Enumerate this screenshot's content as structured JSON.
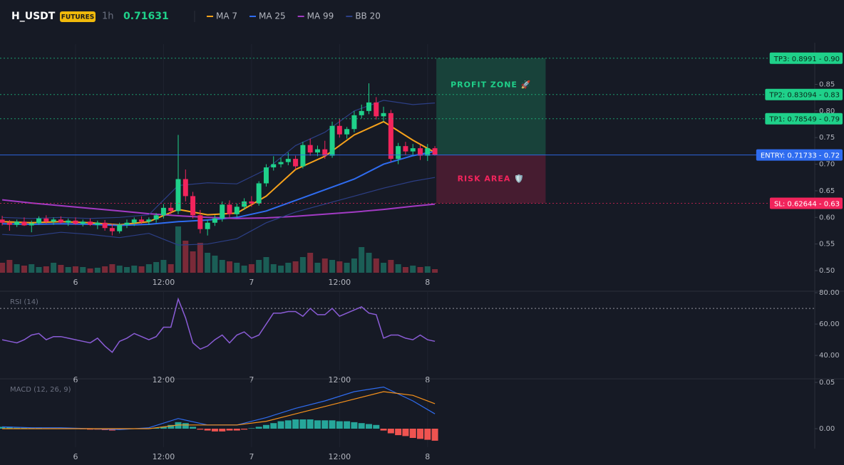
{
  "header": {
    "symbol": "H_USDT",
    "badge": "FUTURES",
    "interval": "1h",
    "price": 0.71631
  },
  "chart_data": [
    {
      "type": "candlestick",
      "x": [
        -10,
        -9,
        -8,
        -7,
        -6,
        -5,
        -4,
        -3,
        -2,
        -1,
        0,
        1,
        2,
        3,
        4,
        5,
        6,
        7,
        8,
        9,
        10,
        11,
        12,
        13,
        14,
        15,
        16,
        17,
        18,
        19,
        20,
        21,
        22,
        23,
        24,
        25,
        26,
        27,
        28,
        29,
        30,
        31,
        32,
        33,
        34,
        35,
        36,
        37,
        38,
        39,
        40,
        41,
        42,
        43,
        44,
        45,
        46,
        47,
        48,
        49
      ],
      "open": [
        0.596,
        0.59,
        0.586,
        0.592,
        0.585,
        0.589,
        0.598,
        0.592,
        0.596,
        0.59,
        0.594,
        0.588,
        0.592,
        0.586,
        0.59,
        0.58,
        0.574,
        0.586,
        0.59,
        0.596,
        0.592,
        0.596,
        0.604,
        0.618,
        0.612,
        0.672,
        0.64,
        0.604,
        0.578,
        0.59,
        0.598,
        0.624,
        0.606,
        0.62,
        0.63,
        0.626,
        0.664,
        0.694,
        0.7,
        0.704,
        0.71,
        0.696,
        0.736,
        0.722,
        0.728,
        0.716,
        0.772,
        0.756,
        0.766,
        0.792,
        0.8,
        0.816,
        0.79,
        0.796,
        0.71,
        0.734,
        0.724,
        0.73,
        0.716,
        0.73
      ],
      "high": [
        0.603,
        0.595,
        0.596,
        0.6,
        0.594,
        0.602,
        0.604,
        0.6,
        0.602,
        0.598,
        0.6,
        0.596,
        0.598,
        0.594,
        0.595,
        0.588,
        0.59,
        0.596,
        0.6,
        0.602,
        0.6,
        0.608,
        0.625,
        0.628,
        0.755,
        0.69,
        0.648,
        0.614,
        0.596,
        0.604,
        0.63,
        0.632,
        0.626,
        0.636,
        0.64,
        0.668,
        0.7,
        0.715,
        0.712,
        0.722,
        0.716,
        0.742,
        0.748,
        0.735,
        0.744,
        0.78,
        0.785,
        0.77,
        0.8,
        0.812,
        0.852,
        0.826,
        0.808,
        0.802,
        0.74,
        0.742,
        0.738,
        0.736,
        0.738,
        0.734
      ],
      "low": [
        0.585,
        0.575,
        0.582,
        0.584,
        0.572,
        0.586,
        0.588,
        0.586,
        0.588,
        0.584,
        0.586,
        0.583,
        0.584,
        0.578,
        0.575,
        0.566,
        0.57,
        0.58,
        0.584,
        0.588,
        0.586,
        0.59,
        0.598,
        0.606,
        0.606,
        0.63,
        0.598,
        0.57,
        0.566,
        0.584,
        0.592,
        0.6,
        0.6,
        0.614,
        0.62,
        0.622,
        0.658,
        0.688,
        0.694,
        0.698,
        0.69,
        0.692,
        0.716,
        0.715,
        0.71,
        0.712,
        0.75,
        0.748,
        0.76,
        0.786,
        0.794,
        0.784,
        0.78,
        0.704,
        0.7,
        0.718,
        0.716,
        0.708,
        0.706,
        0.716
      ],
      "close": [
        0.59,
        0.586,
        0.592,
        0.585,
        0.589,
        0.598,
        0.592,
        0.596,
        0.59,
        0.594,
        0.588,
        0.592,
        0.586,
        0.59,
        0.58,
        0.574,
        0.586,
        0.59,
        0.596,
        0.592,
        0.596,
        0.604,
        0.618,
        0.612,
        0.672,
        0.64,
        0.604,
        0.578,
        0.59,
        0.598,
        0.624,
        0.606,
        0.62,
        0.63,
        0.626,
        0.664,
        0.694,
        0.7,
        0.704,
        0.71,
        0.696,
        0.736,
        0.722,
        0.728,
        0.716,
        0.772,
        0.756,
        0.766,
        0.792,
        0.8,
        0.816,
        0.79,
        0.796,
        0.71,
        0.734,
        0.724,
        0.73,
        0.716,
        0.73,
        0.717
      ],
      "up_color": "#1fd18a",
      "down_color": "#f2245c",
      "volume": {
        "values": [
          14,
          18,
          12,
          10,
          12,
          8,
          9,
          14,
          11,
          8,
          9,
          8,
          6,
          7,
          9,
          12,
          10,
          8,
          10,
          9,
          12,
          15,
          18,
          12,
          65,
          45,
          30,
          42,
          28,
          24,
          18,
          16,
          14,
          10,
          12,
          18,
          22,
          12,
          10,
          14,
          16,
          22,
          28,
          14,
          20,
          18,
          16,
          14,
          20,
          36,
          28,
          20,
          14,
          18,
          12,
          8,
          10,
          8,
          9,
          5
        ],
        "up_color": "#1b5e56",
        "down_color": "#7a2a38"
      },
      "overlays": [
        {
          "name": "MA 7",
          "color": "#f7a21b",
          "x": [
            -10,
            -6,
            -2,
            2,
            6,
            10,
            14,
            18,
            22,
            26,
            30,
            34,
            38,
            42,
            46,
            49
          ],
          "values": [
            0.592,
            0.59,
            0.592,
            0.59,
            0.586,
            0.592,
            0.615,
            0.605,
            0.608,
            0.64,
            0.69,
            0.715,
            0.755,
            0.78,
            0.745,
            0.722
          ]
        },
        {
          "name": "MA 25",
          "color": "#2f6cf0",
          "x": [
            -10,
            -6,
            -2,
            2,
            6,
            10,
            14,
            18,
            22,
            26,
            30,
            34,
            38,
            42,
            46,
            49
          ],
          "values": [
            0.588,
            0.587,
            0.588,
            0.587,
            0.585,
            0.587,
            0.592,
            0.595,
            0.6,
            0.612,
            0.632,
            0.652,
            0.672,
            0.7,
            0.716,
            0.724
          ]
        },
        {
          "name": "MA 99",
          "color": "#a23bc4",
          "x": [
            -10,
            -6,
            -2,
            2,
            6,
            10,
            14,
            18,
            22,
            26,
            30,
            34,
            38,
            42,
            46,
            49
          ],
          "values": [
            0.633,
            0.627,
            0.622,
            0.617,
            0.612,
            0.607,
            0.603,
            0.6,
            0.598,
            0.599,
            0.602,
            0.606,
            0.61,
            0.615,
            0.621,
            0.625
          ]
        },
        {
          "name": "BB 20",
          "color": "#2c3f86",
          "x": [
            -10,
            -6,
            -2,
            2,
            6,
            10,
            14,
            18,
            22,
            26,
            30,
            34,
            38,
            42,
            46,
            49
          ],
          "upper": [
            0.6,
            0.598,
            0.6,
            0.598,
            0.6,
            0.605,
            0.66,
            0.665,
            0.663,
            0.69,
            0.735,
            0.76,
            0.8,
            0.82,
            0.812,
            0.815
          ],
          "lower": [
            0.568,
            0.565,
            0.572,
            0.568,
            0.562,
            0.57,
            0.548,
            0.55,
            0.56,
            0.59,
            0.61,
            0.625,
            0.64,
            0.655,
            0.668,
            0.675
          ]
        }
      ],
      "levels": [
        {
          "label": "TP3: 0.8991 - 0.90",
          "value": 0.8991,
          "color": "#1fd18a",
          "text_color": "#0b2a1c",
          "style": "dotted"
        },
        {
          "label": "TP2: 0.83094 - 0.83",
          "value": 0.83094,
          "color": "#1fd18a",
          "text_color": "#0b2a1c",
          "style": "dotted"
        },
        {
          "label": "TP1: 0.78549 - 0.79",
          "value": 0.78549,
          "color": "#1fd18a",
          "text_color": "#0b2a1c",
          "style": "dotted"
        },
        {
          "label": "ENTRY: 0.71733 - 0.72",
          "value": 0.71733,
          "color": "#2f6cf0",
          "text_color": "#ffffff",
          "style": "solid"
        },
        {
          "label": "SL: 0.62644 - 0.63",
          "value": 0.62644,
          "color": "#f2245c",
          "text_color": "#ffffff",
          "style": "dotted"
        }
      ],
      "zones": [
        {
          "label": "PROFIT ZONE 🚀",
          "side": "above",
          "color": "#1fd18a",
          "x": [
            49.2,
            64.1
          ]
        },
        {
          "label": "RISK AREA 🛡️",
          "side": "below",
          "color": "#f2245c",
          "x": [
            49.2,
            64.1
          ]
        }
      ],
      "xlim": [
        -10.3,
        100.8
      ],
      "xticks": [
        {
          "value": 0,
          "label": "6"
        },
        {
          "value": 12,
          "label": "12:00"
        },
        {
          "value": 24,
          "label": "7"
        },
        {
          "value": 36,
          "label": "12:00"
        },
        {
          "value": 48,
          "label": "8"
        }
      ],
      "ylim": [
        0.496,
        0.9256
      ],
      "yticks": [
        {
          "value": 0.5,
          "label": "0.50"
        },
        0.55,
        {
          "value": 0.6,
          "label": "0.60"
        },
        0.65,
        {
          "value": 0.7,
          "label": "0.70"
        },
        0.75,
        {
          "value": 0.8,
          "label": "0.80"
        },
        0.85
      ]
    },
    {
      "type": "line",
      "title": "RSI (14)",
      "x": [
        -10,
        -9,
        -8,
        -7,
        -6,
        -5,
        -4,
        -3,
        -2,
        -1,
        0,
        1,
        2,
        3,
        4,
        5,
        6,
        7,
        8,
        9,
        10,
        11,
        12,
        13,
        14,
        15,
        16,
        17,
        18,
        19,
        20,
        21,
        22,
        23,
        24,
        25,
        26,
        27,
        28,
        29,
        30,
        31,
        32,
        33,
        34,
        35,
        36,
        37,
        38,
        39,
        40,
        41,
        42,
        43,
        44,
        45,
        46,
        47,
        48,
        49
      ],
      "series": [
        {
          "color": "#8a5cd6",
          "values": [
            50,
            49,
            48,
            50,
            53,
            54,
            50,
            52,
            52,
            51,
            50,
            49,
            48,
            51,
            46,
            42,
            49,
            51,
            54,
            52,
            50,
            52,
            58,
            58,
            76,
            64,
            48,
            44,
            46,
            50,
            53,
            48,
            53,
            55,
            51,
            53,
            60,
            67,
            67,
            68,
            68,
            65,
            70,
            66,
            66,
            70,
            65,
            67,
            69,
            71,
            67,
            66,
            51,
            53,
            53,
            51,
            50,
            53,
            50,
            49
          ]
        }
      ],
      "reference_line": 70,
      "xlim": [
        -10.3,
        100.8
      ],
      "xticks": [
        {
          "value": 0,
          "label": "6"
        },
        {
          "value": 12,
          "label": "12:00"
        },
        {
          "value": 24,
          "label": "7"
        },
        {
          "value": 36,
          "label": "12:00"
        },
        {
          "value": 48,
          "label": "8"
        }
      ],
      "ylim": [
        30.5,
        80.5
      ],
      "yticks": [
        {
          "value": 40,
          "label": "40.00"
        },
        {
          "value": 60,
          "label": "60.00"
        },
        {
          "value": 80,
          "label": "80.00"
        }
      ]
    },
    {
      "type": "macd",
      "title": "MACD (12, 26, 9)",
      "x": [
        -10,
        -9,
        -8,
        -7,
        -6,
        -5,
        -4,
        -3,
        -2,
        -1,
        0,
        1,
        2,
        3,
        4,
        5,
        6,
        7,
        8,
        9,
        10,
        11,
        12,
        13,
        14,
        15,
        16,
        17,
        18,
        19,
        20,
        21,
        22,
        23,
        24,
        25,
        26,
        27,
        28,
        29,
        30,
        31,
        32,
        33,
        34,
        35,
        36,
        37,
        38,
        39,
        40,
        41,
        42,
        43,
        44,
        45,
        46,
        47,
        48,
        49
      ],
      "histogram": {
        "values": [
          0.002,
          0.002,
          0.001,
          0.001,
          0.001,
          0.001,
          0.0005,
          0.0005,
          0.0005,
          0.0005,
          0.0003,
          -0.0005,
          -0.001,
          -0.001,
          -0.0015,
          -0.002,
          -0.001,
          -0.0005,
          0.0003,
          0.0005,
          0.0005,
          0.0008,
          0.002,
          0.004,
          0.007,
          0.006,
          0.002,
          -0.001,
          -0.002,
          -0.003,
          -0.003,
          -0.002,
          -0.002,
          -0.001,
          0.0005,
          0.002,
          0.004,
          0.006,
          0.008,
          0.009,
          0.01,
          0.01,
          0.01,
          0.009,
          0.009,
          0.009,
          0.008,
          0.008,
          0.007,
          0.006,
          0.005,
          0.004,
          -0.002,
          -0.005,
          -0.007,
          -0.008,
          -0.01,
          -0.011,
          -0.012,
          -0.013
        ],
        "up_color": "#26a69a",
        "down_color": "#ef5350"
      },
      "series": [
        {
          "color": "#2f6cf0",
          "x": [
            -10,
            -6,
            -2,
            2,
            6,
            10,
            14,
            18,
            22,
            26,
            30,
            34,
            38,
            42,
            46,
            49
          ],
          "values": [
            0.002,
            0.001,
            0.001,
            0.0,
            -0.001,
            0.001,
            0.011,
            0.004,
            0.004,
            0.012,
            0.022,
            0.03,
            0.04,
            0.045,
            0.03,
            0.016
          ]
        },
        {
          "color": "#f7921b",
          "x": [
            -10,
            -6,
            -2,
            2,
            6,
            10,
            14,
            18,
            22,
            26,
            30,
            34,
            38,
            42,
            46,
            49
          ],
          "values": [
            0.0,
            0.0,
            0.0,
            0.0,
            0.0,
            0.0,
            0.004,
            0.004,
            0.004,
            0.008,
            0.016,
            0.024,
            0.032,
            0.04,
            0.036,
            0.027
          ]
        }
      ],
      "xlim": [
        -10.3,
        100.8
      ],
      "xticks": [
        {
          "value": 0,
          "label": "6"
        },
        {
          "value": 12,
          "label": "12:00"
        },
        {
          "value": 24,
          "label": "7"
        },
        {
          "value": 36,
          "label": "12:00"
        },
        {
          "value": 48,
          "label": "8"
        }
      ],
      "ylim": [
        -0.02,
        0.0515
      ],
      "yticks": [
        {
          "value": 0,
          "label": "0.00"
        },
        {
          "value": 0.05,
          "label": "0.05"
        }
      ]
    }
  ]
}
